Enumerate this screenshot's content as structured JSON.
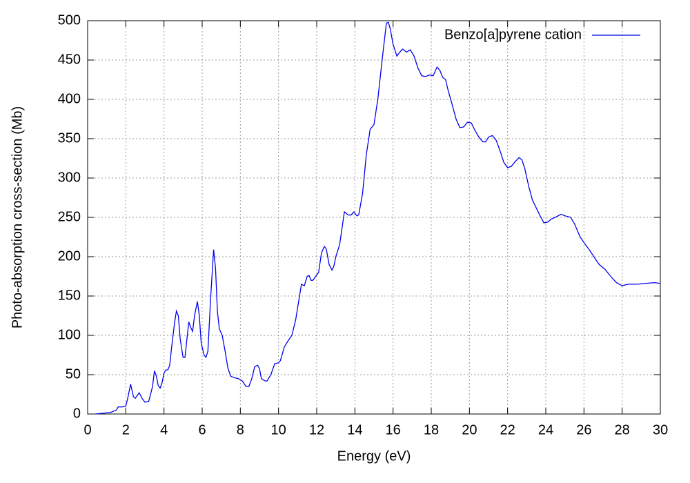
{
  "chart_data": {
    "type": "line",
    "xlabel": "Energy (eV)",
    "ylabel": "Photo-absorption cross-section (Mb)",
    "xlim": [
      0,
      30
    ],
    "xticks": [
      0,
      2,
      4,
      6,
      8,
      10,
      12,
      14,
      16,
      18,
      20,
      22,
      24,
      26,
      28,
      30
    ],
    "ylim": [
      0,
      500
    ],
    "yticks": [
      0,
      50,
      100,
      150,
      200,
      250,
      300,
      350,
      400,
      450,
      500
    ],
    "grid": true,
    "legend": "top-right",
    "x": [
      0.4,
      0.8,
      1.2,
      1.5,
      1.6,
      1.8,
      2.0,
      2.1,
      2.25,
      2.4,
      2.5,
      2.7,
      2.85,
      3.0,
      3.2,
      3.4,
      3.5,
      3.6,
      3.7,
      3.8,
      3.9,
      4.0,
      4.1,
      4.2,
      4.3,
      4.4,
      4.55,
      4.65,
      4.75,
      4.85,
      5.0,
      5.1,
      5.2,
      5.3,
      5.4,
      5.5,
      5.6,
      5.75,
      5.85,
      5.95,
      6.1,
      6.2,
      6.3,
      6.45,
      6.6,
      6.7,
      6.8,
      6.9,
      7.05,
      7.2,
      7.35,
      7.5,
      7.7,
      7.9,
      8.1,
      8.3,
      8.45,
      8.6,
      8.75,
      8.9,
      9.0,
      9.1,
      9.3,
      9.4,
      9.6,
      9.8,
      10.0,
      10.1,
      10.3,
      10.5,
      10.7,
      10.9,
      11.1,
      11.2,
      11.35,
      11.5,
      11.6,
      11.7,
      11.8,
      11.95,
      12.1,
      12.25,
      12.4,
      12.5,
      12.65,
      12.8,
      12.9,
      13.0,
      13.2,
      13.45,
      13.55,
      13.65,
      13.8,
      13.95,
      14.1,
      14.2,
      14.4,
      14.6,
      14.8,
      15.0,
      15.2,
      15.45,
      15.65,
      15.75,
      15.85,
      16.0,
      16.2,
      16.35,
      16.5,
      16.7,
      16.9,
      17.1,
      17.3,
      17.5,
      17.7,
      17.9,
      18.1,
      18.3,
      18.45,
      18.6,
      18.75,
      18.9,
      19.1,
      19.3,
      19.5,
      19.7,
      19.9,
      20.1,
      20.3,
      20.5,
      20.7,
      20.85,
      21.0,
      21.2,
      21.4,
      21.6,
      21.8,
      22.0,
      22.2,
      22.4,
      22.6,
      22.75,
      22.9,
      23.1,
      23.3,
      23.5,
      23.7,
      23.9,
      24.1,
      24.3,
      24.5,
      24.8,
      25.0,
      25.3,
      25.5,
      25.8,
      26.0,
      26.3,
      26.6,
      26.8,
      27.1,
      27.4,
      27.7,
      28.0,
      28.3,
      28.8,
      29.2,
      29.7,
      30.0
    ],
    "series": [
      {
        "name": "Benzo[a]pyrene cation",
        "color": "#0000ee",
        "values": [
          0,
          1,
          2,
          5,
          9,
          9,
          10,
          20,
          38,
          22,
          20,
          27,
          20,
          15,
          16,
          35,
          55,
          48,
          36,
          33,
          40,
          52,
          56,
          56,
          62,
          85,
          115,
          131,
          125,
          95,
          72,
          72,
          95,
          117,
          110,
          105,
          125,
          143,
          125,
          90,
          75,
          72,
          80,
          150,
          209,
          185,
          130,
          108,
          100,
          80,
          58,
          48,
          46,
          45,
          42,
          35,
          35,
          45,
          60,
          62,
          58,
          45,
          42,
          42,
          50,
          64,
          65,
          68,
          85,
          93,
          100,
          120,
          150,
          165,
          163,
          175,
          176,
          170,
          170,
          175,
          180,
          205,
          213,
          210,
          190,
          183,
          188,
          200,
          215,
          257,
          255,
          253,
          253,
          257,
          252,
          253,
          280,
          330,
          362,
          368,
          400,
          455,
          497,
          498,
          490,
          470,
          455,
          460,
          464,
          460,
          463,
          455,
          440,
          430,
          429,
          431,
          430,
          441,
          437,
          428,
          425,
          410,
          393,
          375,
          364,
          365,
          371,
          370,
          360,
          352,
          346,
          346,
          352,
          354,
          348,
          335,
          320,
          313,
          315,
          321,
          326,
          323,
          312,
          290,
          272,
          262,
          252,
          243,
          244,
          248,
          250,
          254,
          252,
          250,
          242,
          225,
          218,
          208,
          197,
          190,
          184,
          175,
          167,
          163,
          165,
          165,
          166,
          167,
          166
        ]
      }
    ]
  }
}
